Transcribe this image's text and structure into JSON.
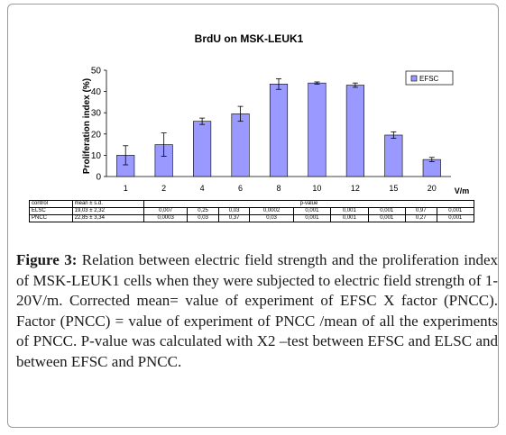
{
  "chart_data": {
    "type": "bar",
    "title": "BrdU on MSK-LEUK1",
    "xlabel": "V/m",
    "ylabel": "Proliferation index (%)",
    "ylim": [
      0,
      50
    ],
    "yticks": [
      0,
      10,
      20,
      30,
      40,
      50
    ],
    "categories": [
      "1",
      "2",
      "4",
      "6",
      "8",
      "10",
      "12",
      "15",
      "20"
    ],
    "series": [
      {
        "name": "EFSC",
        "values": [
          10,
          15,
          26,
          29.5,
          43.5,
          44,
          43,
          19.5,
          8
        ],
        "errors": [
          4.5,
          5.5,
          1.5,
          3.5,
          2.5,
          0.5,
          1,
          1.5,
          1
        ]
      }
    ],
    "legend_position": "top-right",
    "grid": false,
    "bar_color": "#9999ff"
  },
  "table": {
    "header": [
      "control",
      "mean ± s.d.",
      "p-value"
    ],
    "rows": [
      {
        "control": "ELSC",
        "mean": "19,03 ± 2,32",
        "pvalues": [
          "0,007",
          "0,25",
          "0,03",
          "0,0002",
          "0,001",
          "0,001",
          "0,001",
          "0,97",
          "0,001"
        ]
      },
      {
        "control": "PNCC",
        "mean": "22,85 ± 3,34",
        "pvalues": [
          "0,0003",
          "0,03",
          "0,37",
          "0,03",
          "0,001",
          "0,001",
          "0,001",
          "0,27",
          "0,001"
        ]
      }
    ]
  },
  "caption": {
    "label": "Figure 3:",
    "text": "Relation between electric field strength and the proliferation index of MSK-LEUK1 cells when they were subjected to electric field strength of 1-20V/m. Corrected mean= value of experiment of EFSC X factor (PNCC). Factor (PNCC) = value of experiment of PNCC /mean of all the experiments of PNCC. P-value was calculated with X2 –test between EFSC and ELSC and between EFSC and PNCC."
  }
}
